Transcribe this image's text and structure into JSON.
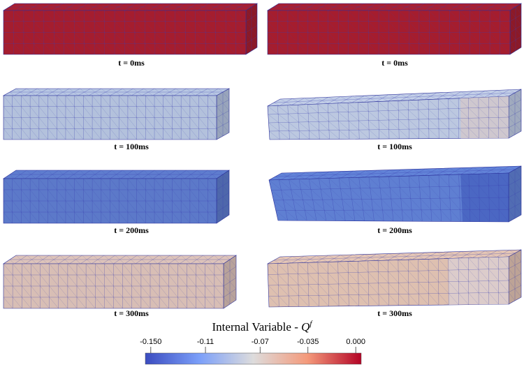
{
  "panels": [
    {
      "caption": "t = 0ms"
    },
    {
      "caption": "t = 0ms"
    },
    {
      "caption": "t = 100ms"
    },
    {
      "caption": "t = 100ms"
    },
    {
      "caption": "t = 200ms"
    },
    {
      "caption": "t = 200ms"
    },
    {
      "caption": "t = 300ms"
    },
    {
      "caption": "t = 300ms"
    }
  ],
  "colorbar": {
    "title": "Internal Variable -",
    "symbol": "Q",
    "superscript": "f",
    "lim": [
      -0.154,
      0.004
    ],
    "ticks": [
      {
        "value": -0.15,
        "label": "-0.150"
      },
      -0.11,
      -0.07,
      -0.035,
      {
        "value": 0,
        "label": "0.000"
      }
    ]
  }
}
